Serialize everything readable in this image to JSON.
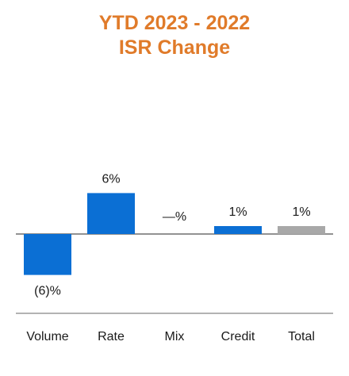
{
  "chart_data": {
    "type": "bar",
    "title": [
      "YTD 2023 - 2022",
      "ISR Change"
    ],
    "categories": [
      "Volume",
      "Rate",
      "Mix",
      "Credit",
      "Total"
    ],
    "values": [
      -6,
      6,
      0,
      1,
      1
    ],
    "data_labels": [
      "(6)%",
      "6%",
      "—%",
      "1%",
      "1%"
    ],
    "bar_colors": [
      "#0b6fd4",
      "#0b6fd4",
      "#0b6fd4",
      "#0b6fd4",
      "#a8a8a8"
    ],
    "title_color": "#e07b2a",
    "axis_color": "#6e6e6e",
    "grid": false,
    "legend": "none"
  }
}
